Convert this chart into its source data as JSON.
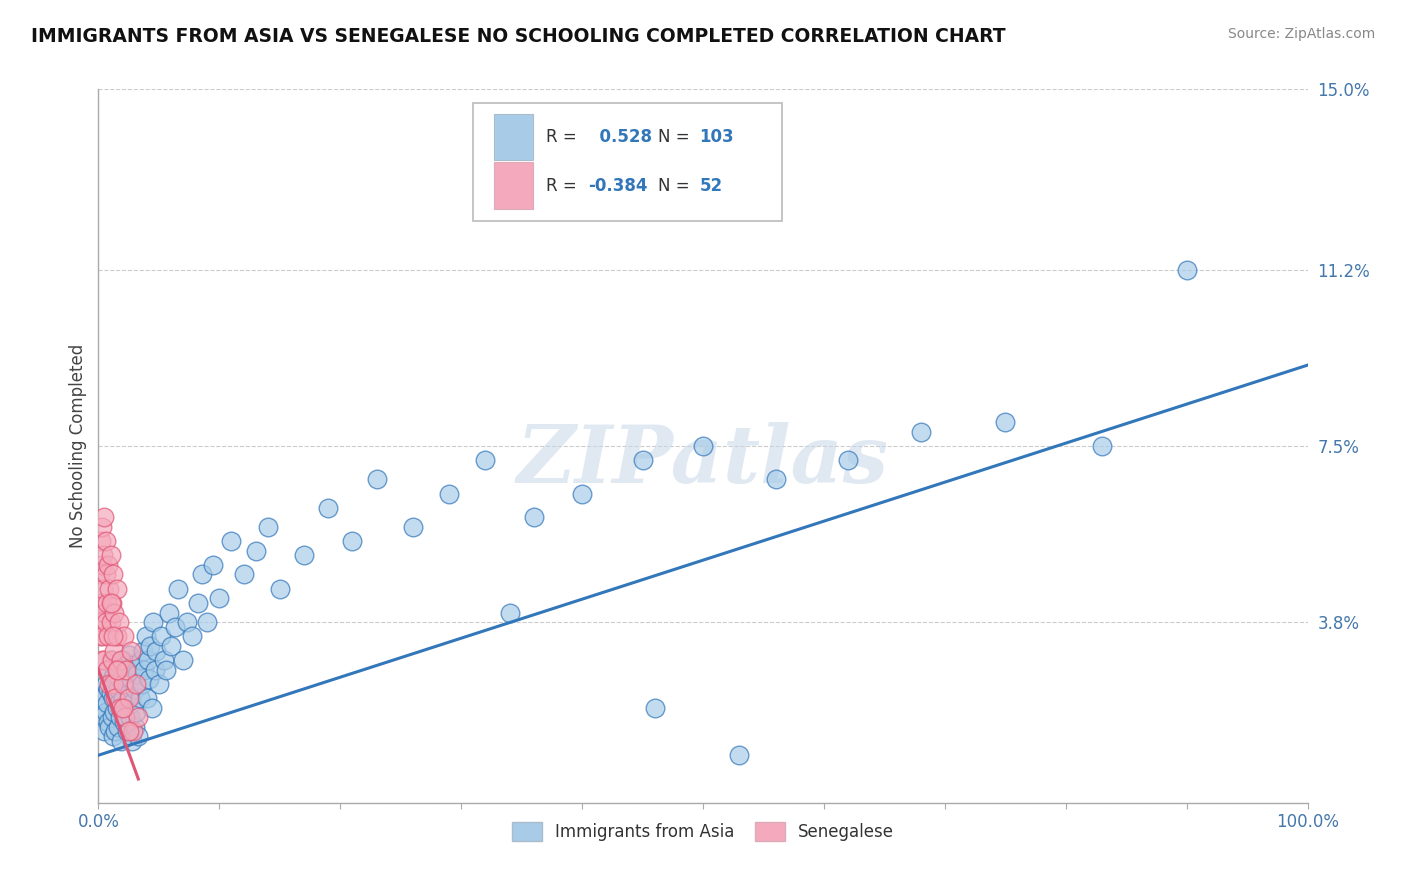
{
  "title": "IMMIGRANTS FROM ASIA VS SENEGALESE NO SCHOOLING COMPLETED CORRELATION CHART",
  "source": "Source: ZipAtlas.com",
  "ylabel": "No Schooling Completed",
  "xlim": [
    0,
    1.0
  ],
  "ylim": [
    0,
    0.15
  ],
  "ytick_positions": [
    0.0,
    0.038,
    0.075,
    0.112,
    0.15
  ],
  "ytick_labels": [
    "",
    "3.8%",
    "7.5%",
    "11.2%",
    "15.0%"
  ],
  "blue_R": 0.528,
  "blue_N": 103,
  "pink_R": -0.384,
  "pink_N": 52,
  "blue_color": "#A8CCE8",
  "pink_color": "#F4AABC",
  "blue_line_color": "#3377BB",
  "pink_line_color": "#E05575",
  "legend_label_1": "Immigrants from Asia",
  "legend_label_2": "Senegalese",
  "watermark": "ZIPatlas",
  "background_color": "#FFFFFF",
  "blue_scatter_x": [
    0.002,
    0.003,
    0.004,
    0.005,
    0.006,
    0.006,
    0.007,
    0.007,
    0.008,
    0.008,
    0.009,
    0.01,
    0.01,
    0.011,
    0.011,
    0.012,
    0.012,
    0.013,
    0.013,
    0.014,
    0.014,
    0.015,
    0.015,
    0.016,
    0.016,
    0.017,
    0.018,
    0.018,
    0.019,
    0.02,
    0.02,
    0.021,
    0.022,
    0.022,
    0.023,
    0.024,
    0.025,
    0.025,
    0.026,
    0.027,
    0.028,
    0.028,
    0.029,
    0.03,
    0.03,
    0.031,
    0.032,
    0.033,
    0.034,
    0.035,
    0.036,
    0.037,
    0.038,
    0.039,
    0.04,
    0.041,
    0.042,
    0.043,
    0.044,
    0.045,
    0.047,
    0.048,
    0.05,
    0.052,
    0.054,
    0.056,
    0.058,
    0.06,
    0.063,
    0.066,
    0.07,
    0.073,
    0.077,
    0.082,
    0.086,
    0.09,
    0.095,
    0.1,
    0.11,
    0.12,
    0.13,
    0.14,
    0.15,
    0.17,
    0.19,
    0.21,
    0.23,
    0.26,
    0.29,
    0.32,
    0.36,
    0.4,
    0.45,
    0.5,
    0.56,
    0.62,
    0.68,
    0.75,
    0.83,
    0.9,
    0.34,
    0.46,
    0.53
  ],
  "blue_scatter_y": [
    0.02,
    0.018,
    0.022,
    0.015,
    0.025,
    0.019,
    0.021,
    0.028,
    0.017,
    0.024,
    0.016,
    0.023,
    0.03,
    0.018,
    0.026,
    0.014,
    0.022,
    0.019,
    0.027,
    0.015,
    0.023,
    0.02,
    0.028,
    0.016,
    0.024,
    0.021,
    0.018,
    0.026,
    0.013,
    0.022,
    0.03,
    0.017,
    0.025,
    0.02,
    0.028,
    0.015,
    0.023,
    0.031,
    0.018,
    0.026,
    0.013,
    0.021,
    0.029,
    0.016,
    0.024,
    0.019,
    0.027,
    0.014,
    0.022,
    0.03,
    0.025,
    0.032,
    0.028,
    0.035,
    0.022,
    0.03,
    0.026,
    0.033,
    0.02,
    0.038,
    0.028,
    0.032,
    0.025,
    0.035,
    0.03,
    0.028,
    0.04,
    0.033,
    0.037,
    0.045,
    0.03,
    0.038,
    0.035,
    0.042,
    0.048,
    0.038,
    0.05,
    0.043,
    0.055,
    0.048,
    0.053,
    0.058,
    0.045,
    0.052,
    0.062,
    0.055,
    0.068,
    0.058,
    0.065,
    0.072,
    0.06,
    0.065,
    0.072,
    0.075,
    0.068,
    0.072,
    0.078,
    0.08,
    0.075,
    0.112,
    0.04,
    0.02,
    0.01
  ],
  "pink_scatter_x": [
    0.001,
    0.001,
    0.002,
    0.002,
    0.002,
    0.003,
    0.003,
    0.003,
    0.004,
    0.004,
    0.004,
    0.005,
    0.005,
    0.005,
    0.006,
    0.006,
    0.006,
    0.007,
    0.007,
    0.008,
    0.008,
    0.009,
    0.009,
    0.01,
    0.01,
    0.011,
    0.011,
    0.012,
    0.012,
    0.013,
    0.013,
    0.014,
    0.015,
    0.015,
    0.016,
    0.017,
    0.018,
    0.019,
    0.02,
    0.021,
    0.022,
    0.023,
    0.025,
    0.027,
    0.029,
    0.031,
    0.033,
    0.01,
    0.012,
    0.015,
    0.02,
    0.025
  ],
  "pink_scatter_y": [
    0.035,
    0.048,
    0.042,
    0.055,
    0.038,
    0.05,
    0.03,
    0.058,
    0.045,
    0.035,
    0.052,
    0.04,
    0.06,
    0.03,
    0.048,
    0.038,
    0.055,
    0.042,
    0.028,
    0.05,
    0.035,
    0.045,
    0.025,
    0.038,
    0.052,
    0.03,
    0.042,
    0.025,
    0.048,
    0.032,
    0.04,
    0.022,
    0.035,
    0.045,
    0.028,
    0.038,
    0.02,
    0.03,
    0.025,
    0.035,
    0.018,
    0.028,
    0.022,
    0.032,
    0.015,
    0.025,
    0.018,
    0.042,
    0.035,
    0.028,
    0.02,
    0.015
  ]
}
